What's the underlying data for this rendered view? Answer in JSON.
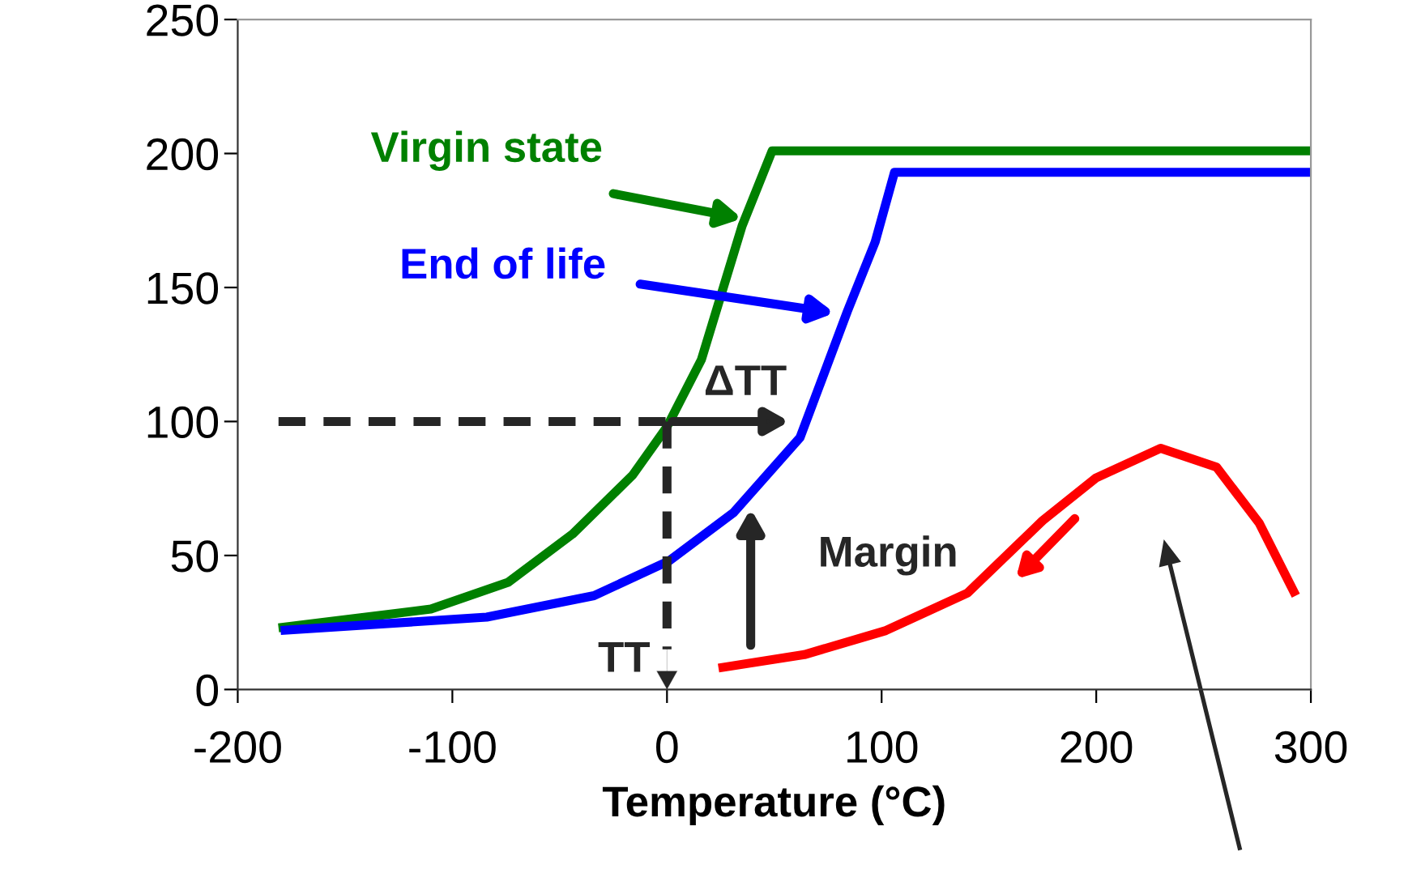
{
  "chart_data": {
    "type": "line",
    "xlabel": "Temperature (°C)",
    "xlim": [
      -200,
      300
    ],
    "xticks": [
      -200,
      -100,
      0,
      100,
      200,
      300
    ],
    "ylim": [
      0,
      250
    ],
    "yticks": [
      0,
      50,
      100,
      150,
      200,
      250
    ],
    "grid": false,
    "marker": "none",
    "line_style": "solid",
    "series": [
      {
        "name": "Virgin state",
        "color": "#008000",
        "x": [
          -181,
          -110,
          -74,
          -44,
          -16,
          0,
          16,
          35,
          49,
          300
        ],
        "values": [
          23,
          30,
          40,
          58,
          80,
          98,
          123,
          173,
          201,
          201
        ]
      },
      {
        "name": "End of life",
        "color": "#0000ff",
        "x": [
          -180,
          -84,
          -34,
          1,
          31,
          62,
          84,
          97,
          106,
          300
        ],
        "values": [
          22,
          27,
          35,
          48,
          66,
          94,
          141,
          167,
          193,
          193
        ]
      },
      {
        "color": "#ff0000",
        "x": [
          24,
          64,
          102,
          140,
          175,
          200,
          230,
          256,
          276,
          293
        ],
        "values": [
          8,
          13,
          22,
          36,
          63,
          79,
          90,
          83,
          62,
          35
        ]
      }
    ],
    "annotations": [
      "ΔTT",
      {
        "text": "TT",
        "x": 0,
        "y": 100
      },
      "Margin"
    ]
  }
}
